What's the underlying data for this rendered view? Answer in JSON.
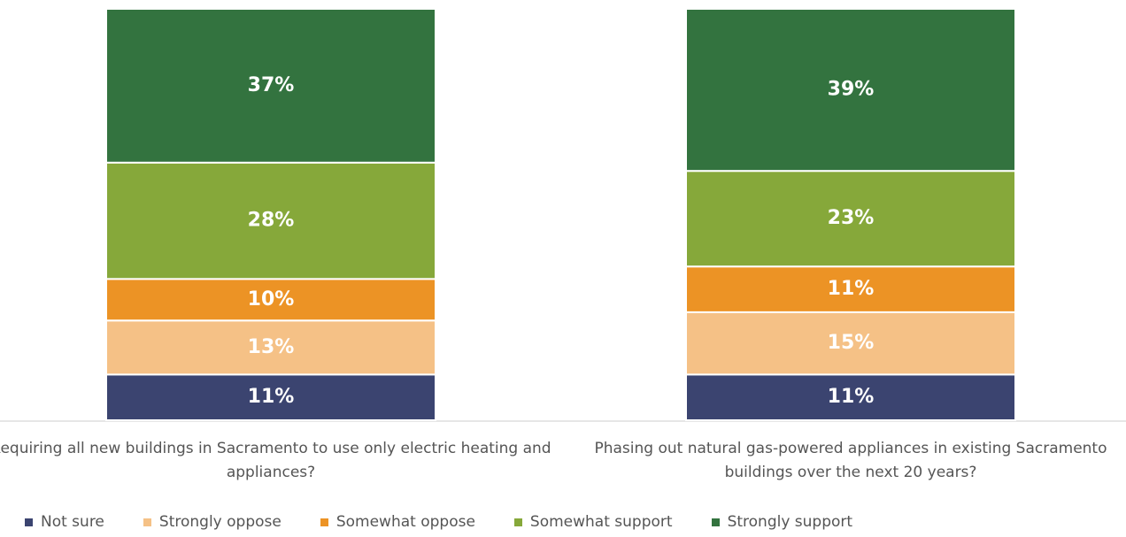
{
  "chart_data": {
    "type": "stacked_bar",
    "categories": [
      "Requiring all new buildings in Sacramento to use only electric heating and appliances?",
      "Phasing out natural gas-powered appliances in existing Sacramento buildings over the next 20 years?"
    ],
    "series": [
      {
        "name": "Not sure",
        "color": "#3b4470",
        "values": [
          11,
          11
        ],
        "value_labels": [
          "11%",
          "11%"
        ]
      },
      {
        "name": "Strongly oppose",
        "color": "#f5c186",
        "values": [
          13,
          15
        ],
        "value_labels": [
          "13%",
          "15%"
        ]
      },
      {
        "name": "Somewhat oppose",
        "color": "#ec9325",
        "values": [
          10,
          11
        ],
        "value_labels": [
          "10%",
          "11%"
        ]
      },
      {
        "name": "Somewhat support",
        "color": "#86a83a",
        "values": [
          28,
          23
        ],
        "value_labels": [
          "28%",
          "23%"
        ]
      },
      {
        "name": "Strongly support",
        "color": "#33733f",
        "values": [
          37,
          39
        ],
        "value_labels": [
          "37%",
          "39%"
        ]
      }
    ]
  }
}
